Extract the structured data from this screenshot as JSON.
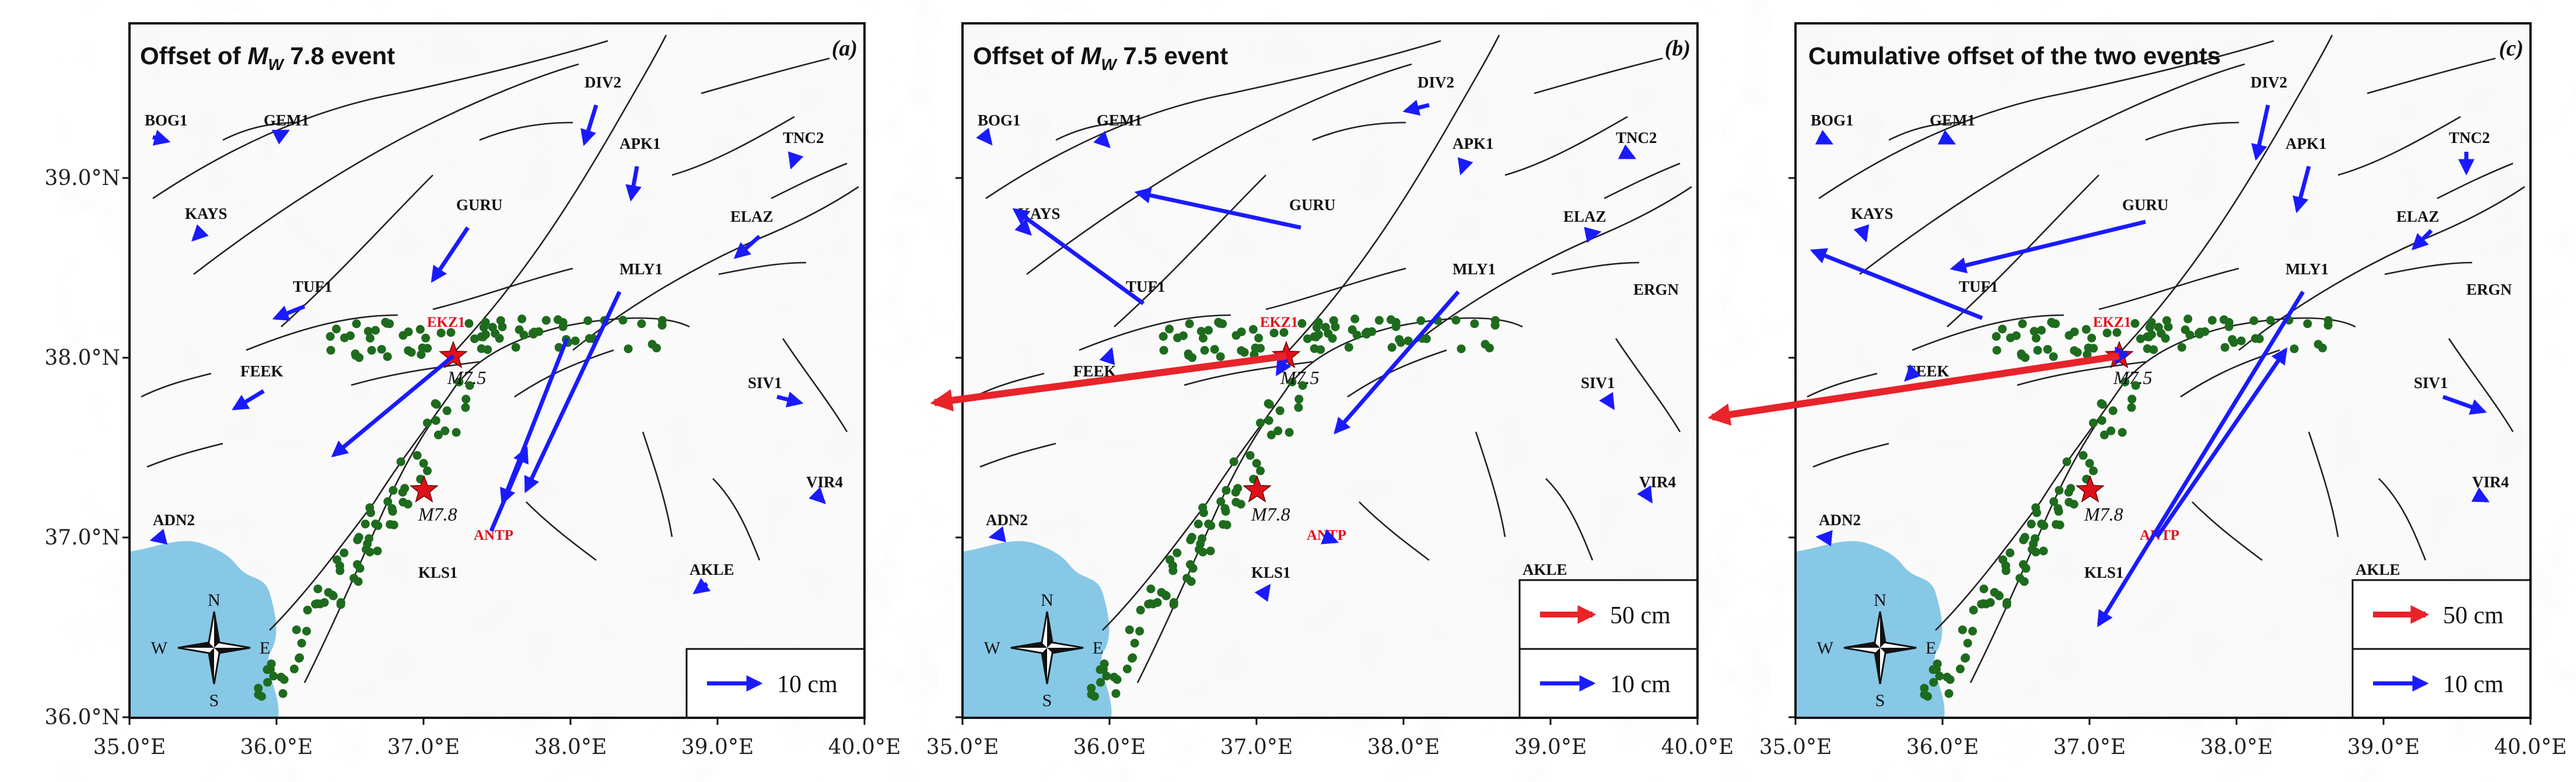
{
  "panels": [
    {
      "id": "a",
      "title_prefix": "Offset of ",
      "title_m": "M",
      "title_sub": "W",
      "title_suffix": " 7.8 event",
      "letter": "(a)",
      "legend": [
        {
          "label": "10 cm",
          "color": "#1a1aff"
        }
      ]
    },
    {
      "id": "b",
      "title_prefix": "Offset of ",
      "title_m": "M",
      "title_sub": "W",
      "title_suffix": " 7.5 event",
      "letter": "(b)",
      "legend": [
        {
          "label": "50 cm",
          "color": "#e8232a"
        },
        {
          "label": "10 cm",
          "color": "#1a1aff"
        }
      ]
    },
    {
      "id": "c",
      "title_text": "Cumulative offset of the two events",
      "letter": "(c)",
      "legend": [
        {
          "label": "50 cm",
          "color": "#e8232a"
        },
        {
          "label": "10 cm",
          "color": "#1a1aff"
        }
      ]
    }
  ],
  "x_ticks": [
    "35.0°E",
    "36.0°E",
    "37.0°E",
    "38.0°E",
    "39.0°E",
    "40.0°E"
  ],
  "y_ticks": [
    "39.0°N",
    "38.0°N",
    "37.0°N",
    "36.0°N"
  ],
  "stations": [
    "BOG1",
    "GEM1",
    "DIV2",
    "APK1",
    "TNC2",
    "KAYS",
    "GURU",
    "ELAZ",
    "TUF1",
    "MLY1",
    "ERGN",
    "FEEK",
    "SIV1",
    "VIR4",
    "ADN2",
    "KLS1",
    "AKLE",
    "EKZ1",
    "ANTP"
  ],
  "magnitudes": {
    "north": "M7.5",
    "south": "M7.8"
  },
  "compass": {
    "n": "N",
    "s": "S",
    "e": "E",
    "w": "W"
  },
  "colors": {
    "sea": "#87c8e6",
    "arrow_blue": "#1a1aff",
    "arrow_red": "#e8232a",
    "aftershock": "#1e6b1e",
    "epicenter": "#e0101a",
    "fault": "#222222"
  }
}
